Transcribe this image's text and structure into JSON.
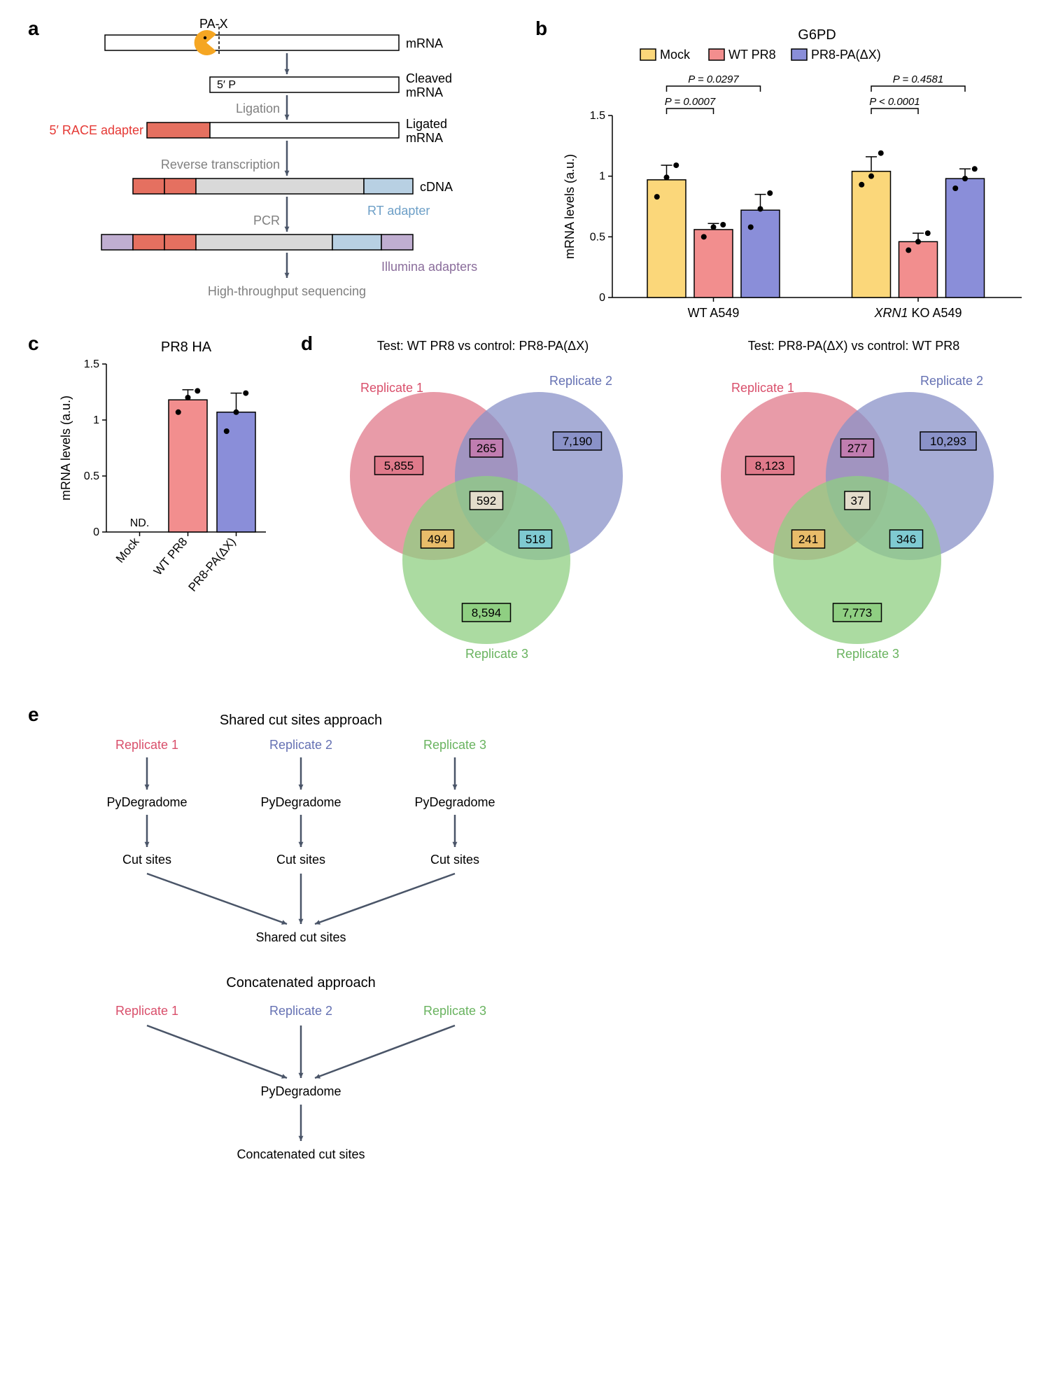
{
  "panelA": {
    "label": "a",
    "pax": "PA-X",
    "rows": [
      {
        "right": "mRNA"
      },
      {
        "right": "Cleaved mRNA",
        "leftInside": "5′ P"
      },
      {
        "right": "Ligated mRNA",
        "stepAbove": "Ligation",
        "leftLabel": "5′ RACE adapter",
        "leftLabelColor": "#e53935"
      },
      {
        "right": "cDNA",
        "stepAbove": "Reverse transcription",
        "rtLabel": "RT adapter",
        "rtColor": "#6d9fc7"
      },
      {
        "right": "",
        "illuminaLabel": "Illumina adapters",
        "illuminaColor": "#8a6d9b",
        "stepAbove": "PCR"
      }
    ],
    "finalStep": "High-throughput sequencing",
    "colors": {
      "pax": "#f5a623",
      "adapter": "#e57060",
      "cdna": "#d9d9d9",
      "rt": "#b8d0e3",
      "illumina": "#c0aed1"
    }
  },
  "panelB": {
    "label": "b",
    "title": "G6PD",
    "ylabel": "mRNA levels (a.u.)",
    "ymax": 1.5,
    "yticks": [
      0,
      0.5,
      1.0,
      1.5
    ],
    "groups": [
      "WT A549",
      "XRN1 KO A549"
    ],
    "legend": [
      {
        "name": "Mock",
        "color": "#fbd77a"
      },
      {
        "name": "WT PR8",
        "color": "#f28e8e"
      },
      {
        "name": "PR8-PA(ΔX)",
        "color": "#8a8ed9"
      }
    ],
    "bars": [
      {
        "group": 0,
        "series": 0,
        "value": 0.97,
        "err": 0.12,
        "points": [
          0.83,
          0.99,
          1.09
        ]
      },
      {
        "group": 0,
        "series": 1,
        "value": 0.56,
        "err": 0.05,
        "points": [
          0.5,
          0.58,
          0.6
        ]
      },
      {
        "group": 0,
        "series": 2,
        "value": 0.72,
        "err": 0.13,
        "points": [
          0.58,
          0.73,
          0.86
        ]
      },
      {
        "group": 1,
        "series": 0,
        "value": 1.04,
        "err": 0.12,
        "points": [
          0.93,
          1.0,
          1.19
        ]
      },
      {
        "group": 1,
        "series": 1,
        "value": 0.46,
        "err": 0.07,
        "points": [
          0.39,
          0.46,
          0.53
        ]
      },
      {
        "group": 1,
        "series": 2,
        "value": 0.98,
        "err": 0.08,
        "points": [
          0.9,
          0.98,
          1.06
        ]
      }
    ],
    "pvals": [
      {
        "group": 0,
        "from": 0,
        "to": 1,
        "text": "P = 0.0007",
        "level": 0
      },
      {
        "group": 0,
        "from": 0,
        "to": 2,
        "text": "P = 0.0297",
        "level": 1
      },
      {
        "group": 1,
        "from": 0,
        "to": 1,
        "text": "P < 0.0001",
        "level": 0
      },
      {
        "group": 1,
        "from": 0,
        "to": 2,
        "text": "P = 0.4581",
        "level": 1
      }
    ]
  },
  "panelC": {
    "label": "c",
    "title": "PR8 HA",
    "ylabel": "mRNA levels (a.u.)",
    "ymax": 1.5,
    "yticks": [
      0,
      0.5,
      1.0,
      1.5
    ],
    "nd": "ND.",
    "bars": [
      {
        "label": "Mock",
        "value": 0,
        "color": "#fbd77a"
      },
      {
        "label": "WT PR8",
        "value": 1.18,
        "err": 0.09,
        "color": "#f28e8e",
        "points": [
          1.07,
          1.2,
          1.26
        ]
      },
      {
        "label": "PR8-PA(ΔX)",
        "value": 1.07,
        "err": 0.17,
        "color": "#8a8ed9",
        "points": [
          0.9,
          1.07,
          1.24
        ]
      }
    ]
  },
  "panelD": {
    "label": "d",
    "leftTitle": "Test: WT PR8 vs control: PR8-PA(ΔX)",
    "rightTitle": "Test: PR8-PA(ΔX) vs control: WT PR8",
    "repLabels": [
      "Replicate 1",
      "Replicate 2",
      "Replicate 3"
    ],
    "repColors": [
      "#d94f6b",
      "#6571b3",
      "#69b35f"
    ],
    "circleColors": [
      "#e07a8b",
      "#8a92c8",
      "#8fcf82"
    ],
    "left": {
      "only1": "5,855",
      "only2": "7,190",
      "only3": "8,594",
      "i12": "265",
      "i13": "494",
      "i23": "518",
      "i123": "592"
    },
    "right": {
      "only1": "8,123",
      "only2": "10,293",
      "only3": "7,773",
      "i12": "277",
      "i13": "241",
      "i23": "346",
      "i123": "37"
    },
    "boxColors": {
      "only1": "#e07a8b",
      "only2": "#8a92c8",
      "only3": "#8fcf82",
      "i12": "#c07db0",
      "i13": "#e8bc6a",
      "i23": "#7fcad1",
      "i123": "#e3dccb"
    }
  },
  "panelE": {
    "label": "e",
    "sharedTitle": "Shared cut sites approach",
    "concatTitle": "Concatenated approach",
    "repLabels": [
      "Replicate 1",
      "Replicate 2",
      "Replicate 3"
    ],
    "repColors": [
      "#d94f6b",
      "#6571b3",
      "#69b35f"
    ],
    "pyd": "PyDegradome",
    "cut": "Cut sites",
    "shared": "Shared cut sites",
    "concatCut": "Concatenated cut sites"
  }
}
